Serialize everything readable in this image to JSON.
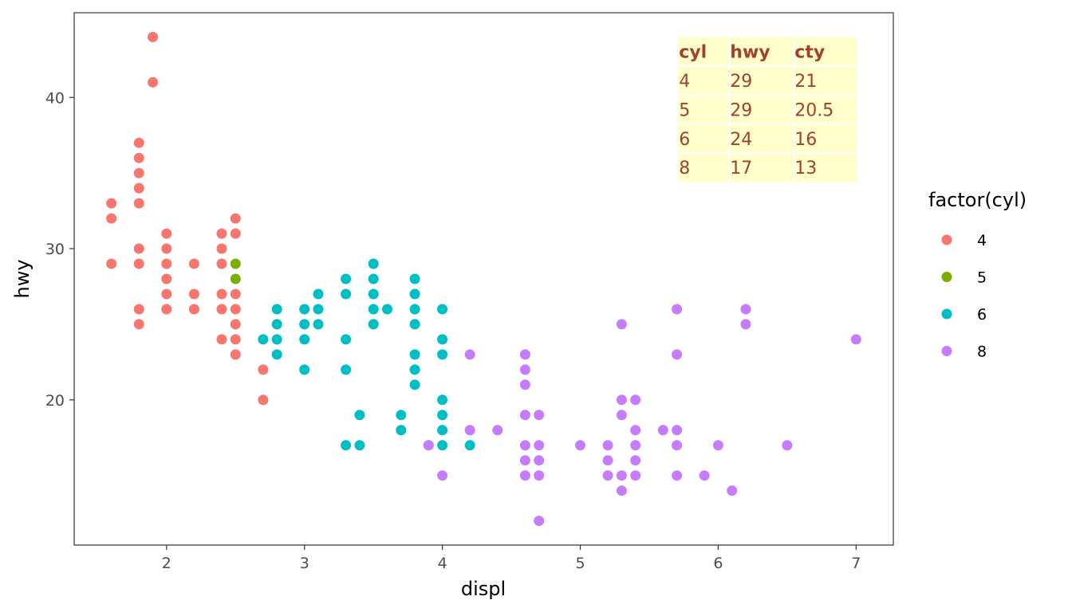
{
  "chart_data": {
    "type": "scatter",
    "xlabel": "displ",
    "ylabel": "hwy",
    "xlim": [
      1.33,
      7.27
    ],
    "ylim": [
      10.4,
      45.6
    ],
    "xticks": [
      2,
      3,
      4,
      5,
      6,
      7
    ],
    "yticks": [
      20,
      30,
      40
    ],
    "grid": false,
    "legend": {
      "title": "factor(cyl)",
      "placement": "right",
      "items": [
        {
          "label": "4",
          "color": "#F8766D"
        },
        {
          "label": "5",
          "color": "#7CAE00"
        },
        {
          "label": "6",
          "color": "#00BFC4"
        },
        {
          "label": "8",
          "color": "#C77CFF"
        }
      ]
    },
    "series": [
      {
        "name": "4",
        "color": "#F8766D",
        "points": [
          [
            1.6,
            33
          ],
          [
            1.6,
            32
          ],
          [
            1.6,
            29
          ],
          [
            1.8,
            37
          ],
          [
            1.8,
            36
          ],
          [
            1.8,
            35
          ],
          [
            1.8,
            34
          ],
          [
            1.8,
            33
          ],
          [
            1.8,
            30
          ],
          [
            1.8,
            29
          ],
          [
            1.8,
            26
          ],
          [
            1.8,
            25
          ],
          [
            1.9,
            44
          ],
          [
            1.9,
            41
          ],
          [
            2.0,
            31
          ],
          [
            2.0,
            30
          ],
          [
            2.0,
            29
          ],
          [
            2.0,
            28
          ],
          [
            2.0,
            27
          ],
          [
            2.0,
            26
          ],
          [
            2.2,
            29
          ],
          [
            2.2,
            27
          ],
          [
            2.2,
            26
          ],
          [
            2.4,
            31
          ],
          [
            2.4,
            30
          ],
          [
            2.4,
            29
          ],
          [
            2.4,
            27
          ],
          [
            2.4,
            26
          ],
          [
            2.4,
            24
          ],
          [
            2.5,
            32
          ],
          [
            2.5,
            31
          ],
          [
            2.5,
            27
          ],
          [
            2.5,
            26
          ],
          [
            2.5,
            25
          ],
          [
            2.5,
            24
          ],
          [
            2.5,
            23
          ],
          [
            2.7,
            22
          ],
          [
            2.7,
            20
          ]
        ]
      },
      {
        "name": "5",
        "color": "#7CAE00",
        "points": [
          [
            2.5,
            29
          ],
          [
            2.5,
            28
          ]
        ]
      },
      {
        "name": "6",
        "color": "#00BFC4",
        "points": [
          [
            2.7,
            24
          ],
          [
            2.8,
            26
          ],
          [
            2.8,
            25
          ],
          [
            2.8,
            24
          ],
          [
            2.8,
            23
          ],
          [
            3.0,
            26
          ],
          [
            3.0,
            25
          ],
          [
            3.0,
            24
          ],
          [
            3.0,
            22
          ],
          [
            3.1,
            27
          ],
          [
            3.1,
            26
          ],
          [
            3.1,
            25
          ],
          [
            3.3,
            28
          ],
          [
            3.3,
            27
          ],
          [
            3.3,
            24
          ],
          [
            3.3,
            22
          ],
          [
            3.3,
            17
          ],
          [
            3.4,
            19
          ],
          [
            3.4,
            17
          ],
          [
            3.5,
            29
          ],
          [
            3.5,
            28
          ],
          [
            3.5,
            27
          ],
          [
            3.5,
            26
          ],
          [
            3.5,
            25
          ],
          [
            3.6,
            26
          ],
          [
            3.7,
            19
          ],
          [
            3.7,
            18
          ],
          [
            3.8,
            28
          ],
          [
            3.8,
            27
          ],
          [
            3.8,
            26
          ],
          [
            3.8,
            25
          ],
          [
            3.8,
            23
          ],
          [
            3.8,
            22
          ],
          [
            3.8,
            21
          ],
          [
            3.9,
            17
          ],
          [
            4.0,
            26
          ],
          [
            4.0,
            24
          ],
          [
            4.0,
            23
          ],
          [
            4.0,
            20
          ],
          [
            4.0,
            19
          ],
          [
            4.0,
            18
          ],
          [
            4.0,
            17
          ],
          [
            4.2,
            17
          ]
        ]
      },
      {
        "name": "8",
        "color": "#C77CFF",
        "points": [
          [
            3.9,
            17
          ],
          [
            4.0,
            15
          ],
          [
            4.2,
            23
          ],
          [
            4.2,
            18
          ],
          [
            4.4,
            18
          ],
          [
            4.6,
            23
          ],
          [
            4.6,
            22
          ],
          [
            4.6,
            21
          ],
          [
            4.6,
            19
          ],
          [
            4.6,
            17
          ],
          [
            4.6,
            16
          ],
          [
            4.6,
            15
          ],
          [
            4.7,
            19
          ],
          [
            4.7,
            17
          ],
          [
            4.7,
            16
          ],
          [
            4.7,
            15
          ],
          [
            4.7,
            12
          ],
          [
            5.0,
            17
          ],
          [
            5.2,
            17
          ],
          [
            5.2,
            16
          ],
          [
            5.2,
            15
          ],
          [
            5.3,
            25
          ],
          [
            5.3,
            20
          ],
          [
            5.3,
            19
          ],
          [
            5.3,
            15
          ],
          [
            5.3,
            14
          ],
          [
            5.4,
            20
          ],
          [
            5.4,
            18
          ],
          [
            5.4,
            17
          ],
          [
            5.4,
            16
          ],
          [
            5.4,
            15
          ],
          [
            5.6,
            18
          ],
          [
            5.7,
            26
          ],
          [
            5.7,
            23
          ],
          [
            5.7,
            18
          ],
          [
            5.7,
            17
          ],
          [
            5.7,
            15
          ],
          [
            5.9,
            15
          ],
          [
            6.0,
            17
          ],
          [
            6.1,
            14
          ],
          [
            6.2,
            26
          ],
          [
            6.2,
            25
          ],
          [
            6.5,
            17
          ],
          [
            7.0,
            24
          ]
        ]
      }
    ],
    "annotation_table": {
      "columns": [
        "cyl",
        "hwy",
        "cty"
      ],
      "rows": [
        [
          "4",
          "29",
          "21"
        ],
        [
          "5",
          "29",
          "20.5"
        ],
        [
          "6",
          "24",
          "16"
        ],
        [
          "8",
          "17",
          "13"
        ]
      ]
    }
  }
}
